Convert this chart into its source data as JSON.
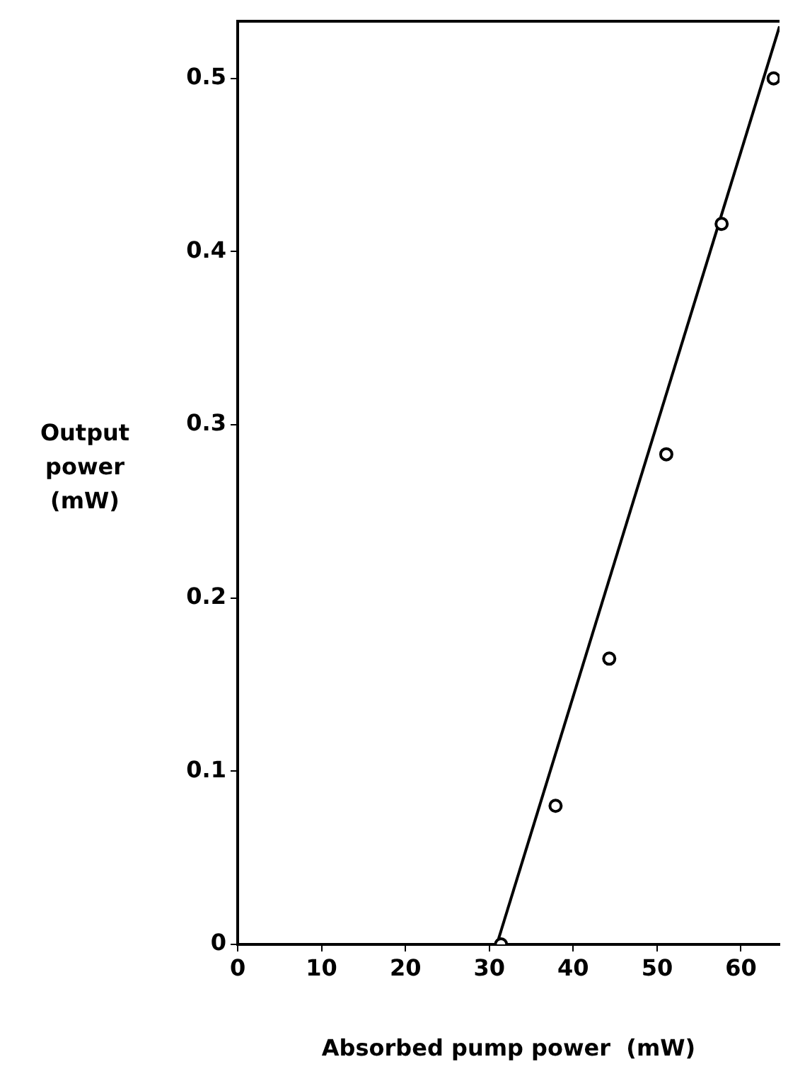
{
  "chart_data": {
    "type": "scatter",
    "xlabel": "Absorbed pump power  (mW)",
    "ylabel": "Output power (mW)",
    "xlim": [
      0,
      64.6
    ],
    "ylim": [
      0,
      0.533
    ],
    "xticks": [
      0,
      10,
      20,
      30,
      40,
      50,
      60
    ],
    "yticks": [
      0,
      0.1,
      0.2,
      0.3,
      0.4,
      0.5
    ],
    "grid": false,
    "marker": "circle",
    "series": [
      {
        "color": "#000000",
        "x": [
          31.4,
          37.9,
          44.3,
          51.1,
          57.7,
          63.9
        ],
        "values": [
          0,
          0.08,
          0.165,
          0.283,
          0.416,
          0.5
        ]
      },
      {
        "type": "line",
        "color": "#000000",
        "marker": "none",
        "x": [
          30.9,
          64.6
        ],
        "values": [
          0,
          0.53
        ]
      }
    ]
  }
}
